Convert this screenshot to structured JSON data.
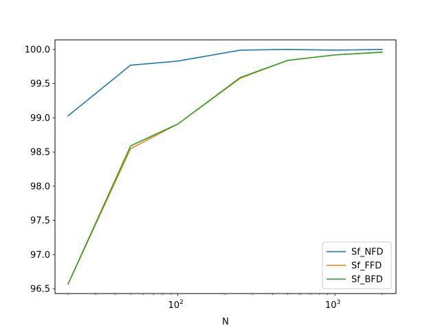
{
  "chart_data": {
    "type": "line",
    "title": "",
    "xlabel": "N",
    "ylabel": "",
    "xscale": "log",
    "xlim": [
      16.5,
      2450
    ],
    "ylim": [
      96.43,
      100.14
    ],
    "x": [
      20,
      50,
      100,
      250,
      500,
      1000,
      2000
    ],
    "xticks": [
      {
        "value": 100,
        "base": "10",
        "exp": "2"
      },
      {
        "value": 1000,
        "base": "10",
        "exp": "3"
      }
    ],
    "yticks": [
      96.5,
      97.0,
      97.5,
      98.0,
      98.5,
      99.0,
      99.5,
      100.0
    ],
    "ytick_labels": [
      "96.5",
      "97.0",
      "97.5",
      "98.0",
      "98.5",
      "99.0",
      "99.5",
      "100.0"
    ],
    "grid": false,
    "legend_position": "lower-right",
    "series": [
      {
        "name": "Sf_NFD",
        "color": "#1f77b4",
        "values": [
          99.03,
          99.77,
          99.83,
          99.99,
          100.0,
          99.99,
          100.0
        ]
      },
      {
        "name": "Sf_FFD",
        "color": "#ff7f0e",
        "values": [
          96.57,
          98.55,
          98.91,
          99.58,
          99.84,
          99.92,
          99.96
        ]
      },
      {
        "name": "Sf_BFD",
        "color": "#2ca02c",
        "values": [
          96.57,
          98.59,
          98.91,
          99.59,
          99.84,
          99.92,
          99.96
        ]
      }
    ]
  }
}
